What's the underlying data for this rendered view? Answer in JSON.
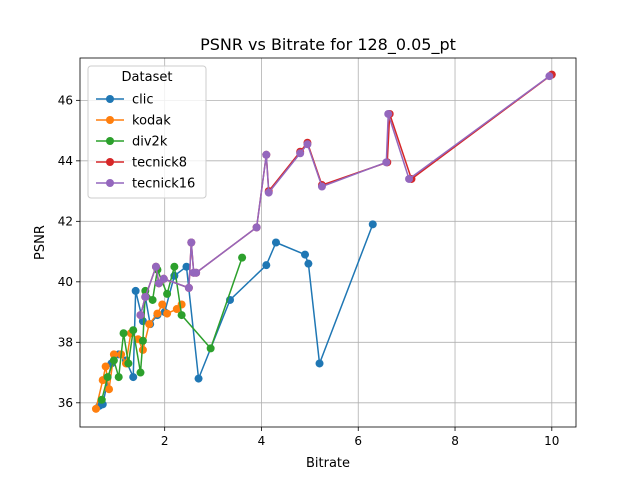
{
  "chart_data": {
    "type": "line",
    "title": "PSNR vs Bitrate for 128_0.05_pt",
    "xlabel": "Bitrate",
    "ylabel": "PSNR",
    "xlim": [
      0.25,
      10.5
    ],
    "ylim": [
      35.2,
      47.4
    ],
    "xticks": [
      2,
      4,
      6,
      8,
      10
    ],
    "yticks": [
      36,
      38,
      40,
      42,
      44,
      46
    ],
    "grid": true,
    "legend_title": "Dataset",
    "legend_position": "top-left",
    "series": [
      {
        "name": "clic",
        "color": "#1f77b4",
        "points": [
          [
            0.65,
            35.9
          ],
          [
            0.72,
            35.95
          ],
          [
            0.9,
            37.3
          ],
          [
            1.05,
            37.6
          ],
          [
            1.2,
            37.4
          ],
          [
            1.35,
            36.85
          ],
          [
            1.4,
            39.7
          ],
          [
            1.55,
            38.7
          ],
          [
            1.6,
            39.5
          ],
          [
            1.7,
            38.6
          ],
          [
            1.85,
            38.9
          ],
          [
            2.0,
            39.0
          ],
          [
            2.2,
            40.2
          ],
          [
            2.45,
            40.5
          ],
          [
            2.7,
            36.8
          ],
          [
            3.35,
            39.4
          ],
          [
            4.1,
            40.55
          ],
          [
            4.3,
            41.3
          ],
          [
            4.9,
            40.9
          ],
          [
            4.97,
            40.6
          ],
          [
            5.2,
            37.3
          ],
          [
            6.3,
            41.9
          ]
        ]
      },
      {
        "name": "kodak",
        "color": "#ff7f0e",
        "points": [
          [
            0.58,
            35.8
          ],
          [
            0.72,
            36.75
          ],
          [
            0.78,
            37.2
          ],
          [
            0.85,
            36.45
          ],
          [
            0.95,
            37.6
          ],
          [
            1.1,
            37.6
          ],
          [
            1.2,
            37.3
          ],
          [
            1.3,
            38.3
          ],
          [
            1.45,
            38.1
          ],
          [
            1.55,
            37.75
          ],
          [
            1.68,
            38.6
          ],
          [
            1.85,
            38.95
          ],
          [
            1.95,
            39.25
          ],
          [
            2.05,
            38.95
          ],
          [
            2.25,
            39.1
          ],
          [
            2.35,
            39.25
          ]
        ]
      },
      {
        "name": "div2k",
        "color": "#2ca02c",
        "points": [
          [
            0.7,
            36.1
          ],
          [
            0.82,
            36.85
          ],
          [
            0.95,
            37.4
          ],
          [
            1.05,
            36.85
          ],
          [
            1.15,
            38.3
          ],
          [
            1.25,
            37.3
          ],
          [
            1.35,
            38.4
          ],
          [
            1.5,
            37.0
          ],
          [
            1.55,
            38.05
          ],
          [
            1.6,
            39.7
          ],
          [
            1.75,
            39.4
          ],
          [
            1.85,
            40.4
          ],
          [
            2.05,
            39.6
          ],
          [
            2.2,
            40.5
          ],
          [
            2.35,
            38.9
          ],
          [
            2.95,
            37.8
          ],
          [
            3.6,
            40.8
          ]
        ]
      },
      {
        "name": "tecnick8",
        "color": "#d62728",
        "points": [
          [
            1.5,
            38.9
          ],
          [
            1.6,
            39.5
          ],
          [
            1.82,
            40.5
          ],
          [
            1.88,
            39.95
          ],
          [
            1.98,
            40.1
          ],
          [
            2.5,
            39.8
          ],
          [
            2.55,
            41.3
          ],
          [
            2.6,
            40.3
          ],
          [
            2.65,
            40.3
          ],
          [
            3.9,
            41.8
          ],
          [
            4.1,
            44.2
          ],
          [
            4.15,
            43.0
          ],
          [
            4.8,
            44.3
          ],
          [
            4.95,
            44.6
          ],
          [
            5.25,
            43.2
          ],
          [
            6.6,
            43.95
          ],
          [
            6.65,
            45.55
          ],
          [
            7.1,
            43.4
          ],
          [
            10.0,
            46.85
          ]
        ]
      },
      {
        "name": "tecnick16",
        "color": "#9467bd",
        "points": [
          [
            1.5,
            38.9
          ],
          [
            1.6,
            39.5
          ],
          [
            1.82,
            40.5
          ],
          [
            1.88,
            39.95
          ],
          [
            1.98,
            40.1
          ],
          [
            2.5,
            39.8
          ],
          [
            2.55,
            41.3
          ],
          [
            2.6,
            40.3
          ],
          [
            2.65,
            40.3
          ],
          [
            3.9,
            41.8
          ],
          [
            4.1,
            44.2
          ],
          [
            4.15,
            42.95
          ],
          [
            4.8,
            44.25
          ],
          [
            4.95,
            44.55
          ],
          [
            5.25,
            43.15
          ],
          [
            6.58,
            43.95
          ],
          [
            6.62,
            45.55
          ],
          [
            7.05,
            43.4
          ],
          [
            9.95,
            46.8
          ]
        ]
      }
    ]
  }
}
